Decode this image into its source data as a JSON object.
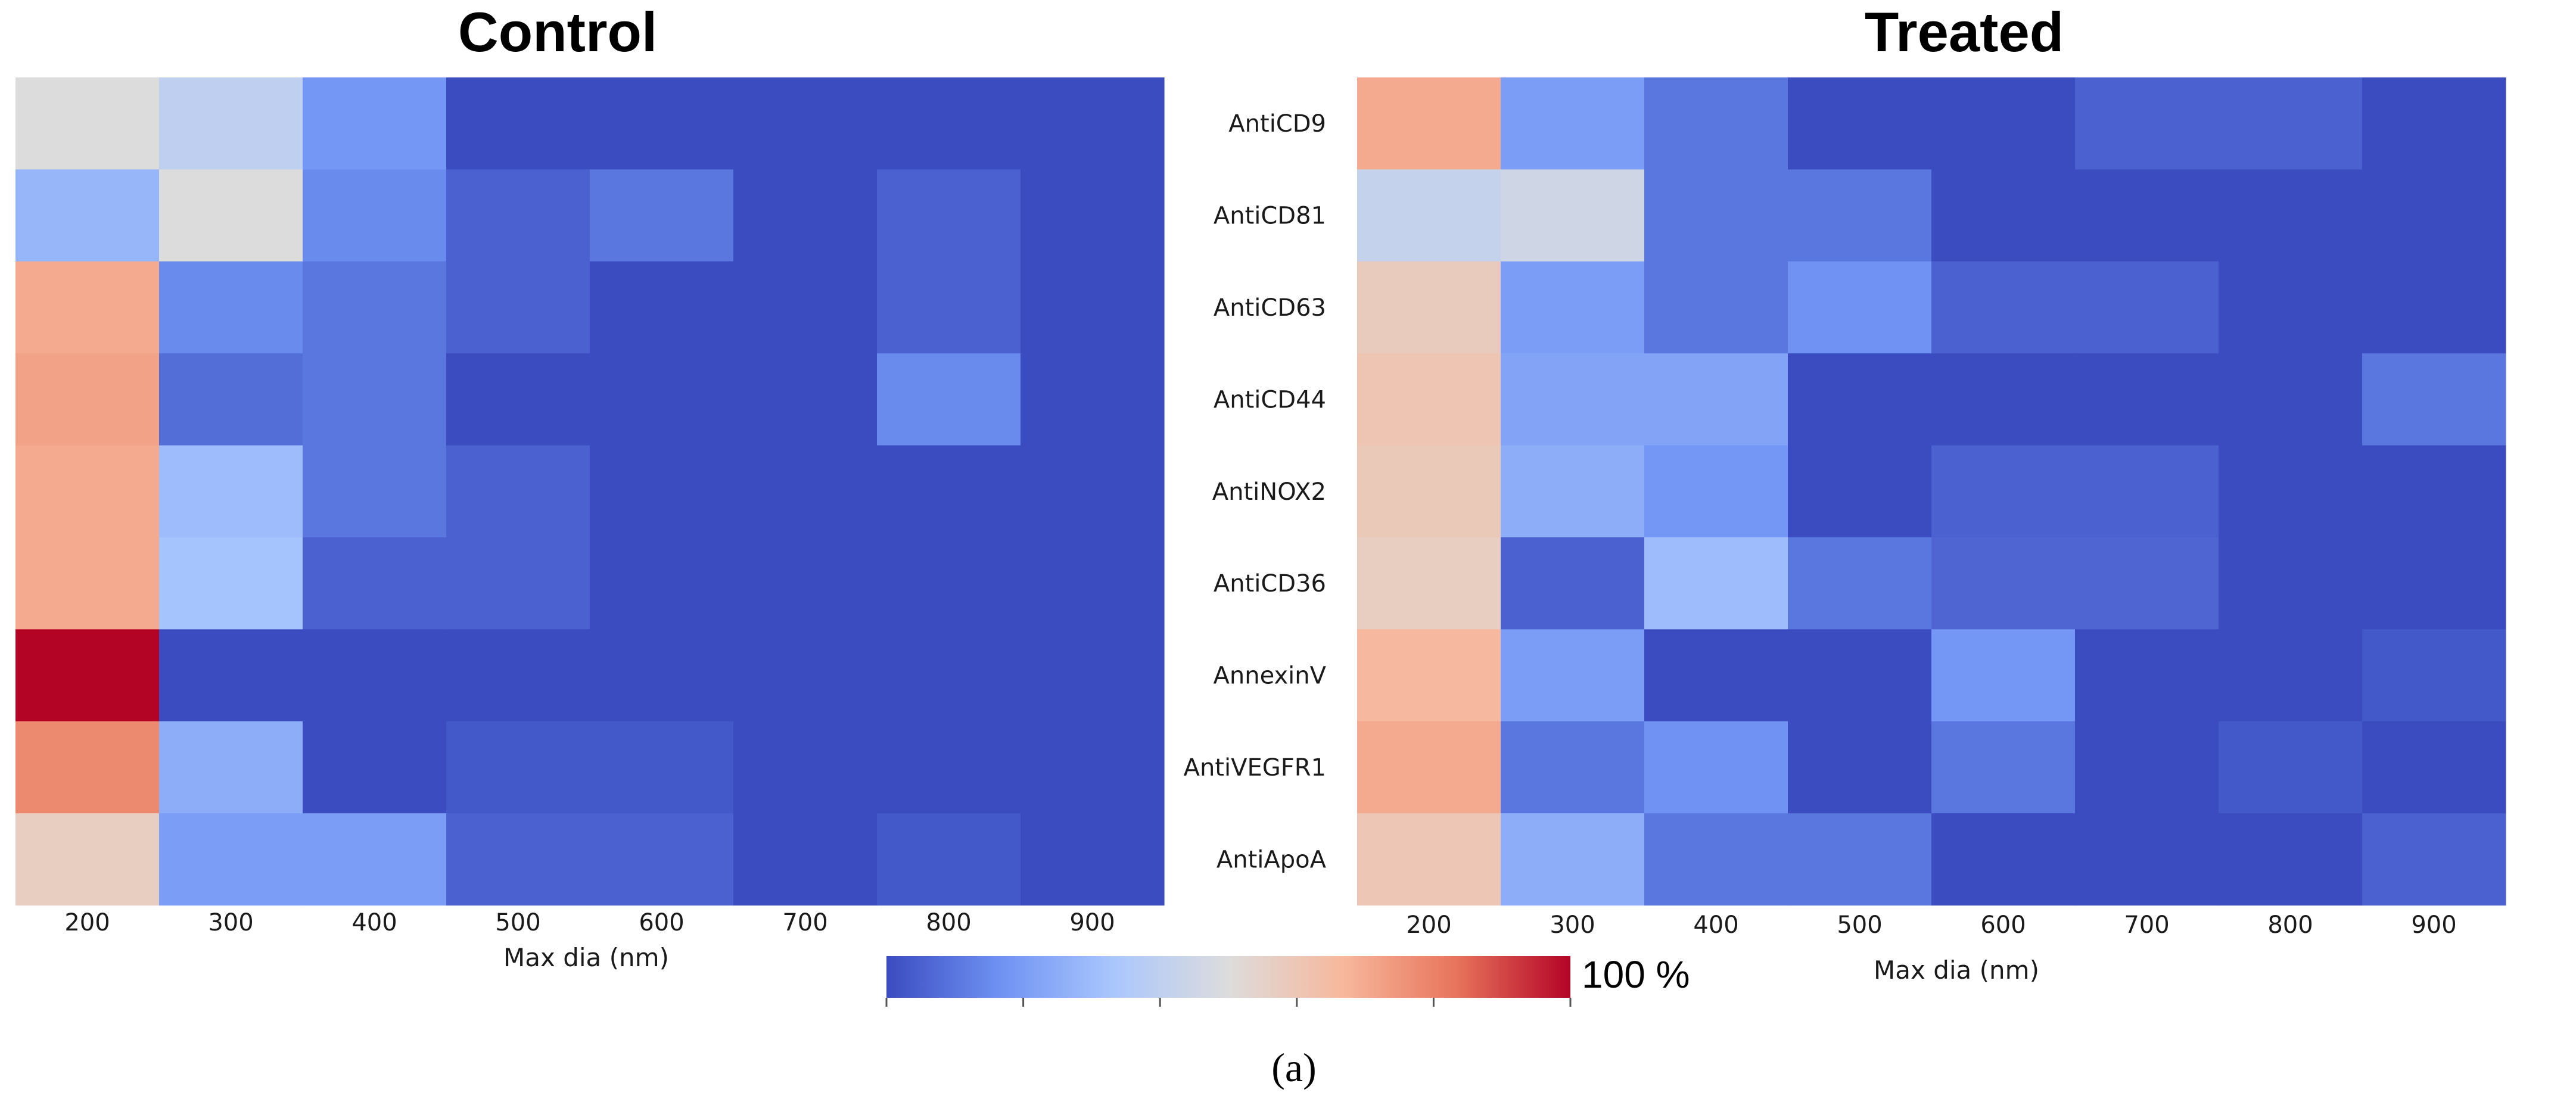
{
  "chart_data": [
    {
      "type": "heatmap",
      "title": "Control",
      "xlabel": "Max dia (nm)",
      "ylabel": "",
      "x": [
        200,
        300,
        400,
        500,
        600,
        700,
        800,
        900
      ],
      "rows": [
        "AntiCD9",
        "AntiCD81",
        "AntiCD63",
        "AntiCD44",
        "AntiNOX2",
        "AntiCD36",
        "AnnexinV",
        "AntiVEGFR1",
        "AntiApoA"
      ],
      "values": [
        [
          50,
          40,
          18,
          0,
          0,
          0,
          0,
          0
        ],
        [
          28,
          50,
          15,
          5,
          10,
          0,
          5,
          0
        ],
        [
          70,
          15,
          10,
          5,
          0,
          0,
          5,
          0
        ],
        [
          72,
          8,
          10,
          0,
          0,
          0,
          15,
          0
        ],
        [
          70,
          30,
          10,
          5,
          0,
          0,
          0,
          0
        ],
        [
          70,
          32,
          5,
          5,
          0,
          0,
          0,
          0
        ],
        [
          100,
          0,
          0,
          0,
          0,
          0,
          0,
          0
        ],
        [
          78,
          25,
          0,
          3,
          3,
          0,
          0,
          0
        ],
        [
          57,
          20,
          20,
          5,
          5,
          0,
          3,
          0
        ]
      ],
      "vmin": 0,
      "vmax": 100
    },
    {
      "type": "heatmap",
      "title": "Treated",
      "xlabel": "Max dia (nm)",
      "ylabel": "",
      "x": [
        200,
        300,
        400,
        500,
        600,
        700,
        800,
        900
      ],
      "rows": [
        "AntiCD9",
        "AntiCD81",
        "AntiCD63",
        "AntiCD44",
        "AntiNOX2",
        "AntiCD36",
        "AnnexinV",
        "AntiVEGFR1",
        "AntiApoA"
      ],
      "values": [
        [
          70,
          20,
          10,
          0,
          0,
          5,
          5,
          0
        ],
        [
          42,
          45,
          10,
          10,
          0,
          0,
          0,
          0
        ],
        [
          58,
          20,
          10,
          17,
          5,
          5,
          0,
          0
        ],
        [
          61,
          22,
          22,
          0,
          0,
          0,
          0,
          10
        ],
        [
          59,
          25,
          18,
          0,
          5,
          5,
          0,
          0
        ],
        [
          57,
          5,
          30,
          10,
          6,
          6,
          0,
          0
        ],
        [
          66,
          20,
          0,
          0,
          18,
          0,
          0,
          3
        ],
        [
          70,
          10,
          17,
          0,
          10,
          0,
          3,
          0
        ],
        [
          60,
          25,
          10,
          10,
          0,
          0,
          0,
          5
        ]
      ],
      "vmin": 0,
      "vmax": 100
    }
  ],
  "colorbar": {
    "label": "100 %",
    "stops": [
      "#3b4cc0",
      "#6f92f3",
      "#aac7fd",
      "#dddcdc",
      "#f7b89c",
      "#e7745b",
      "#b40426"
    ]
  },
  "caption": {
    "text": "(a)"
  }
}
